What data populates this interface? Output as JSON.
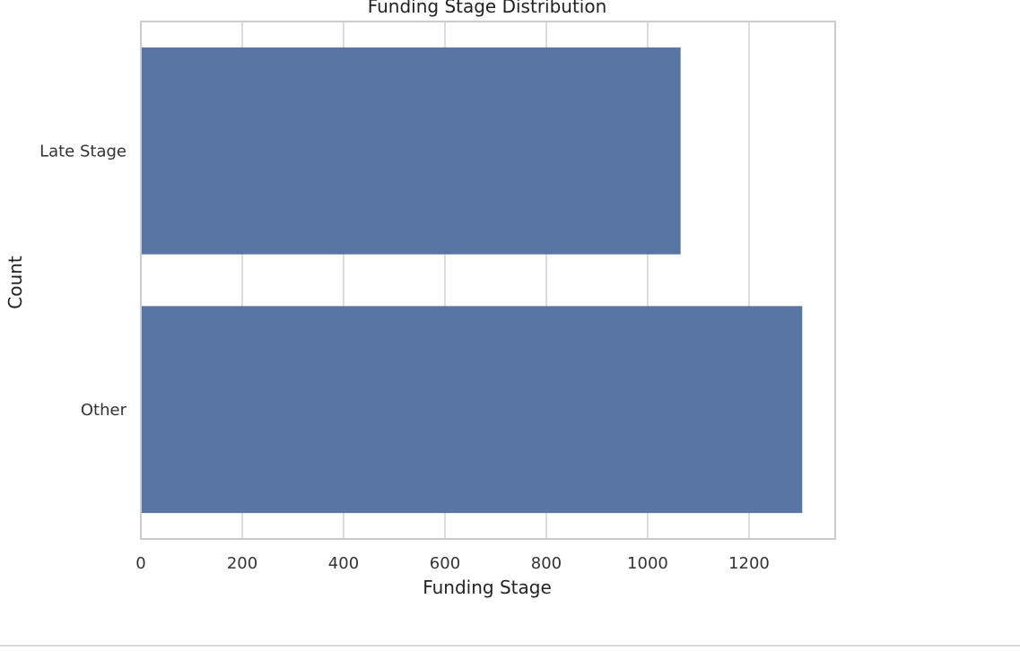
{
  "chart_data": {
    "type": "bar",
    "orientation": "horizontal",
    "title": "Funding Stage Distribution",
    "xlabel": "Funding Stage",
    "ylabel": "Count",
    "categories": [
      "Late Stage",
      "Other"
    ],
    "values": [
      1065,
      1305
    ],
    "xlim": [
      0,
      1370
    ],
    "xticks": [
      0,
      200,
      400,
      600,
      800,
      1000,
      1200
    ],
    "xtick_labels": [
      "0",
      "200",
      "400",
      "600",
      "800",
      "1000",
      "1200"
    ],
    "grid": true,
    "bar_color": "#5975a4",
    "gridline_color": "#d5d5d5",
    "frame_color": "#cccccc"
  }
}
